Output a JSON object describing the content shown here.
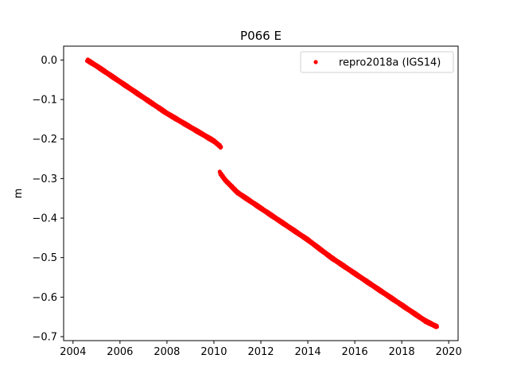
{
  "chart_data": {
    "type": "scatter",
    "title": "P066 E",
    "xlabel": "",
    "ylabel": "m",
    "xlim": [
      2003.6,
      2020.4
    ],
    "ylim": [
      -0.71,
      0.035
    ],
    "xticks": [
      2004,
      2006,
      2008,
      2010,
      2012,
      2014,
      2016,
      2018,
      2020
    ],
    "yticks": [
      0.0,
      -0.1,
      -0.2,
      -0.3,
      -0.4,
      -0.5,
      -0.6,
      -0.7
    ],
    "ytick_labels": [
      "0.0",
      "−0.1",
      "−0.2",
      "−0.3",
      "−0.4",
      "−0.5",
      "−0.6",
      "−0.7"
    ],
    "grid": false,
    "legend_position": "top-right",
    "series": [
      {
        "name": "repro2018a (IGS14)",
        "color": "#ff0000",
        "marker": "dot",
        "segments": [
          {
            "x": [
              2004.6,
              2005.0,
              2006.0,
              2007.0,
              2008.0,
              2009.0,
              2010.0,
              2010.3
            ],
            "y": [
              0.0,
              -0.015,
              -0.055,
              -0.095,
              -0.135,
              -0.17,
              -0.205,
              -0.22
            ]
          },
          {
            "x": [
              2010.25,
              2010.5,
              2011.0,
              2012.0,
              2013.0,
              2014.0,
              2015.0,
              2016.0,
              2017.0,
              2018.0,
              2019.0,
              2019.5
            ],
            "y": [
              -0.285,
              -0.305,
              -0.335,
              -0.375,
              -0.415,
              -0.455,
              -0.5,
              -0.54,
              -0.58,
              -0.62,
              -0.66,
              -0.675
            ]
          }
        ]
      }
    ]
  }
}
